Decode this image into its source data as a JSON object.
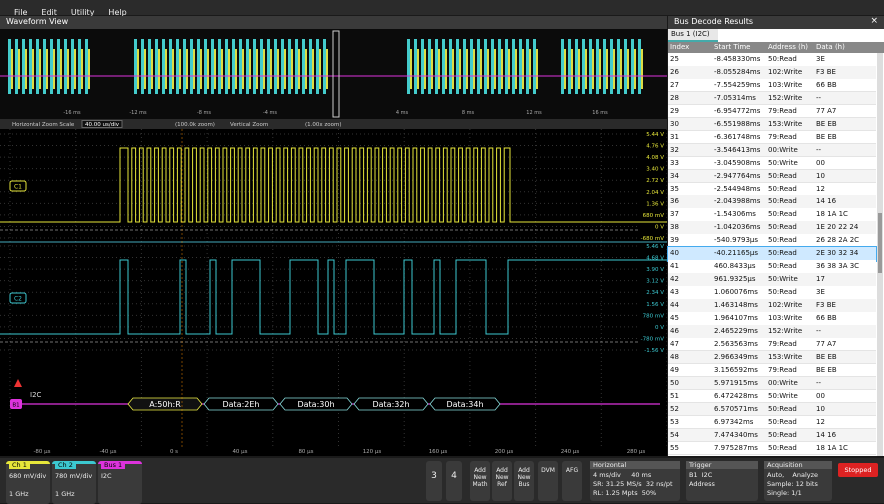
{
  "menu": [
    "File",
    "Edit",
    "Utility",
    "Help"
  ],
  "waveform_view": {
    "title": "Waveform View",
    "overview_ticks": [
      "-16 ms",
      "-12 ms",
      "-8 ms",
      "-4 ms",
      "4 ms",
      "8 ms",
      "12 ms",
      "16 ms"
    ],
    "zoom_bar": {
      "h_label": "Horizontal Zoom Scale",
      "h_value": "40.00 us/div",
      "h_zoom": "(100.0k zoom)",
      "v_label": "Vertical Zoom",
      "v_zoom": "(1.00x zoom)"
    },
    "ch1": {
      "label": "C1",
      "scale": [
        "5.44 V",
        "4.76 V",
        "4.08 V",
        "3.40 V",
        "2.72 V",
        "2.04 V",
        "1.36 V",
        "680 mV",
        "0 V",
        "-680 mV"
      ]
    },
    "ch2": {
      "label": "C2",
      "scale": [
        "5.46 V",
        "4.68 V",
        "3.90 V",
        "3.12 V",
        "2.34 V",
        "1.56 V",
        "780 mV",
        "0 V",
        "-780 mV",
        "-1.56 V"
      ]
    },
    "bus": {
      "label": "B1",
      "name": "I2C",
      "packets": [
        "A:50h:R",
        "Data:2Eh",
        "Data:30h",
        "Data:32h",
        "Data:34h"
      ]
    },
    "time_ticks": [
      "-80 µs",
      "-40 µs",
      "0 s",
      "40 µs",
      "80 µs",
      "120 µs",
      "160 µs",
      "200 µs",
      "240 µs",
      "280 µs"
    ]
  },
  "bus_decode": {
    "title": "Bus Decode Results",
    "tab": "Bus 1 (I2C)",
    "columns": [
      "Index",
      "Start Time",
      "Address (h)",
      "Data (h)"
    ],
    "rows": [
      [
        "25",
        "-8.458330ms",
        "50:Read",
        "3E"
      ],
      [
        "26",
        "-8.055284ms",
        "102:Write",
        "F3 BE"
      ],
      [
        "27",
        "-7.554259ms",
        "103:Write",
        "66 BB"
      ],
      [
        "28",
        "-7.05314ms",
        "152:Write",
        "--"
      ],
      [
        "29",
        "-6.954772ms",
        "79:Read",
        "77 A7"
      ],
      [
        "30",
        "-6.551988ms",
        "153:Write",
        "BE EB"
      ],
      [
        "31",
        "-6.361748ms",
        "79:Read",
        "BE EB"
      ],
      [
        "32",
        "-3.546413ms",
        "00:Write",
        "--"
      ],
      [
        "33",
        "-3.045908ms",
        "50:Write",
        "00"
      ],
      [
        "34",
        "-2.947764ms",
        "50:Read",
        "10"
      ],
      [
        "35",
        "-2.544948ms",
        "50:Read",
        "12"
      ],
      [
        "36",
        "-2.043988ms",
        "50:Read",
        "14 16"
      ],
      [
        "37",
        "-1.54306ms",
        "50:Read",
        "18 1A 1C"
      ],
      [
        "38",
        "-1.042036ms",
        "50:Read",
        "1E 20 22 24"
      ],
      [
        "39",
        "-540.9793µs",
        "50:Read",
        "26 28 2A 2C"
      ],
      [
        "40",
        "-40.21165µs",
        "50:Read",
        "2E 30 32 34"
      ],
      [
        "41",
        "460.8433µs",
        "50:Read",
        "36 38 3A 3C"
      ],
      [
        "42",
        "961.9325µs",
        "50:Write",
        "17"
      ],
      [
        "43",
        "1.060076ms",
        "50:Read",
        "3E"
      ],
      [
        "44",
        "1.463148ms",
        "102:Write",
        "F3 BE"
      ],
      [
        "45",
        "1.964107ms",
        "103:Write",
        "66 BB"
      ],
      [
        "46",
        "2.465229ms",
        "152:Write",
        "--"
      ],
      [
        "47",
        "2.563563ms",
        "79:Read",
        "77 A7"
      ],
      [
        "48",
        "2.966349ms",
        "153:Write",
        "BE EB"
      ],
      [
        "49",
        "3.156592ms",
        "79:Read",
        "BE EB"
      ],
      [
        "50",
        "5.971915ms",
        "00:Write",
        "--"
      ],
      [
        "51",
        "6.472428ms",
        "50:Write",
        "00"
      ],
      [
        "52",
        "6.570571ms",
        "50:Read",
        "10"
      ],
      [
        "53",
        "6.97342ms",
        "50:Read",
        "12"
      ],
      [
        "54",
        "7.474340ms",
        "50:Read",
        "14 16"
      ],
      [
        "55",
        "7.975287ms",
        "50:Read",
        "18 1A 1C"
      ]
    ],
    "selected_row": 15
  },
  "status": {
    "ch1": {
      "name": "Ch 1",
      "scale": "680 mV/div",
      "bw": "1 GHz"
    },
    "ch2": {
      "name": "Ch 2",
      "scale": "780 mV/div",
      "bw": "1 GHz"
    },
    "bus1": {
      "name": "Bus 1",
      "proto": "I2C"
    },
    "buttons": [
      "3",
      "4",
      "Add New Math",
      "Add New Ref",
      "Add New Bus",
      "DVM",
      "AFG"
    ],
    "horizontal": {
      "title": "Horizontal",
      "lines": [
        "4 ms/div     40 ms",
        "SR: 31.25 MS/s  32 ns/pt",
        "RL: 1.25 Mpts  50%"
      ]
    },
    "trigger": {
      "title": "Trigger",
      "lines": [
        "B1  I2C",
        "Address"
      ]
    },
    "acquisition": {
      "title": "Acquisition",
      "lines": [
        "Auto,    Analyze",
        "Sample: 12 bits",
        "Single: 1/1"
      ]
    },
    "state": "Stopped"
  }
}
